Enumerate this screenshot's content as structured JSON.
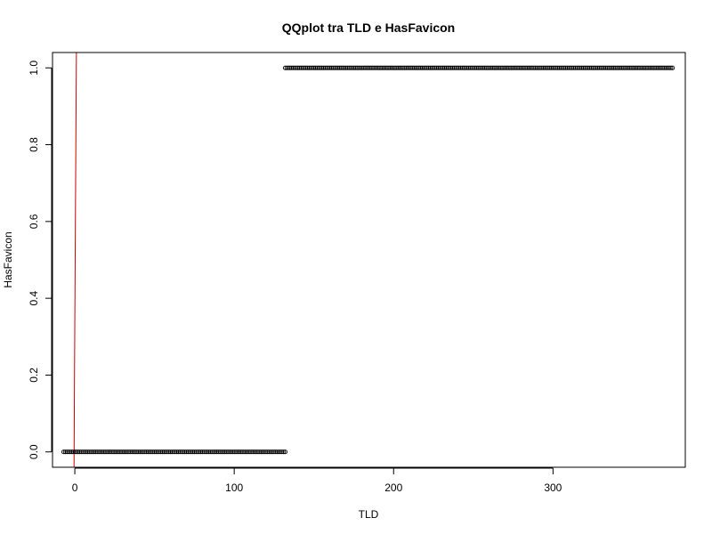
{
  "chart_data": {
    "type": "scatter",
    "title": "QQplot tra TLD e HasFavicon",
    "xlabel": "TLD",
    "ylabel": "HasFavicon",
    "xlim": [
      -14,
      383
    ],
    "ylim": [
      -0.04,
      1.04
    ],
    "x_ticks": [
      0,
      100,
      200,
      300
    ],
    "x_tick_labels": [
      "0",
      "100",
      "200",
      "300"
    ],
    "y_ticks": [
      0.0,
      0.2,
      0.4,
      0.6,
      0.8,
      1.0
    ],
    "y_tick_labels": [
      "0.0",
      "0.2",
      "0.4",
      "0.6",
      "0.8",
      "1.0"
    ],
    "grid": false,
    "legend": "none",
    "marker": "open-circle",
    "series": [
      {
        "color": "#000000",
        "segments": [
          {
            "y": 0,
            "x_from": -7,
            "x_to": 132,
            "step": 1
          },
          {
            "y": 1,
            "x_from": 132,
            "x_to": 375,
            "step": 1
          }
        ]
      }
    ],
    "reference_line": {
      "color": "#cc0000",
      "points": [
        [
          -0.5,
          -0.04
        ],
        [
          -0.2,
          0.2
        ],
        [
          0.6,
          0.77
        ],
        [
          1.0,
          1.04
        ]
      ]
    }
  }
}
